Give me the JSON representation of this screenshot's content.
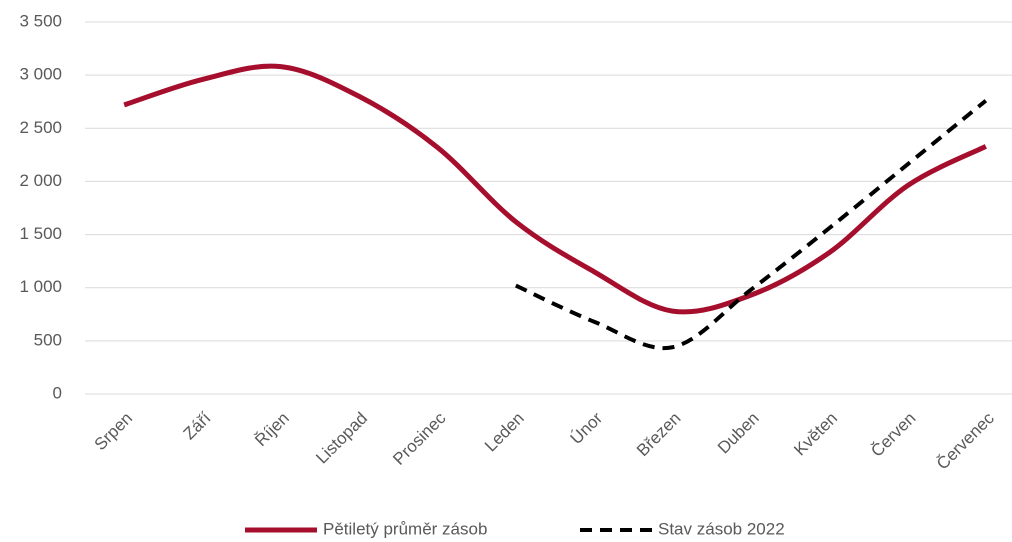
{
  "chart_data": {
    "type": "line",
    "categories": [
      "Srpen",
      "Září",
      "Říjen",
      "Listopad",
      "Prosinec",
      "Leden",
      "Únor",
      "Březen",
      "Duben",
      "Květen",
      "Červen",
      "Červenec"
    ],
    "series": [
      {
        "name": "Pětiletý průměr zásob",
        "color": "#a50f2d",
        "dash": false,
        "values": [
          2720,
          2960,
          3080,
          2800,
          2320,
          1620,
          1150,
          780,
          930,
          1330,
          1960,
          2330
        ]
      },
      {
        "name": "Stav zásob 2022",
        "color": "#000000",
        "dash": true,
        "values": [
          null,
          null,
          null,
          null,
          null,
          1020,
          680,
          440,
          980,
          1560,
          2160,
          2760
        ]
      }
    ],
    "ylim": [
      0,
      3500
    ],
    "yticks": [
      0,
      500,
      {
        "value": 1000,
        "label": "1 000"
      },
      {
        "value": 1500,
        "label": "1 500"
      },
      {
        "value": 2000,
        "label": "2 000"
      },
      {
        "value": 2500,
        "label": "2 500"
      },
      {
        "value": 3000,
        "label": "3 000"
      },
      {
        "value": 3500,
        "label": "3 500"
      }
    ],
    "grid": true,
    "legend": "bottom"
  }
}
